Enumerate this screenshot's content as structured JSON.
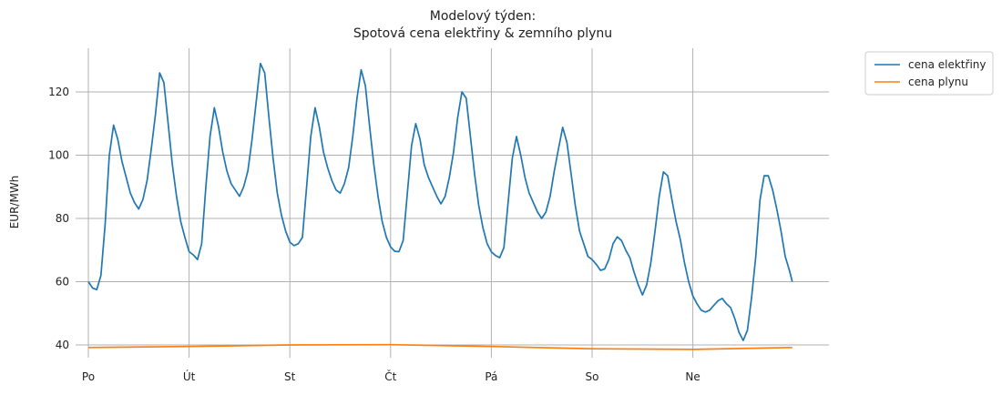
{
  "chart_data": {
    "type": "line",
    "title": [
      "Modelový týden:",
      "Spotová cena elektřiny & zemního plynu"
    ],
    "xlabel": "",
    "ylabel": "EUR/MWh",
    "x_unit": "hour of week",
    "xlim": [
      0,
      168
    ],
    "ylim": [
      35,
      134
    ],
    "yticks": [
      40,
      60,
      80,
      100,
      120
    ],
    "xticks": [
      {
        "x": 0,
        "label": "Po"
      },
      {
        "x": 24,
        "label": "Út"
      },
      {
        "x": 48,
        "label": "St"
      },
      {
        "x": 72,
        "label": "Čt"
      },
      {
        "x": 96,
        "label": "Pá"
      },
      {
        "x": 120,
        "label": "So"
      },
      {
        "x": 144,
        "label": "Ne"
      }
    ],
    "grid": true,
    "legend": "outside-top-right",
    "series": [
      {
        "name": "cena elektřiny",
        "color": "#1f77b4",
        "points": [
          [
            0,
            60
          ],
          [
            1,
            58
          ],
          [
            2,
            57.5
          ],
          [
            3,
            62
          ],
          [
            4,
            78
          ],
          [
            5,
            100
          ],
          [
            6,
            109.5
          ],
          [
            7,
            105
          ],
          [
            8,
            98
          ],
          [
            9,
            93
          ],
          [
            10,
            88
          ],
          [
            11,
            85
          ],
          [
            12,
            83
          ],
          [
            13,
            86
          ],
          [
            14,
            92
          ],
          [
            15,
            102
          ],
          [
            16,
            113
          ],
          [
            17,
            126
          ],
          [
            18,
            123
          ],
          [
            19,
            110
          ],
          [
            20,
            97
          ],
          [
            21,
            87
          ],
          [
            22,
            79
          ],
          [
            23,
            74
          ],
          [
            24,
            69.5
          ],
          [
            25,
            68.5
          ],
          [
            26,
            67
          ],
          [
            27,
            72
          ],
          [
            28,
            90
          ],
          [
            29,
            106
          ],
          [
            30,
            115
          ],
          [
            31,
            109
          ],
          [
            32,
            101
          ],
          [
            33,
            95
          ],
          [
            34,
            91
          ],
          [
            35,
            89
          ],
          [
            36,
            87
          ],
          [
            37,
            90
          ],
          [
            38,
            95
          ],
          [
            39,
            105
          ],
          [
            40,
            117
          ],
          [
            41,
            129
          ],
          [
            42,
            126
          ],
          [
            43,
            112
          ],
          [
            44,
            99
          ],
          [
            45,
            88
          ],
          [
            46,
            81
          ],
          [
            47,
            76
          ],
          [
            48,
            72.5
          ],
          [
            49,
            71.4
          ],
          [
            50,
            72
          ],
          [
            51,
            74
          ],
          [
            52,
            90
          ],
          [
            53,
            106
          ],
          [
            54,
            115
          ],
          [
            55,
            109
          ],
          [
            56,
            101
          ],
          [
            57,
            96
          ],
          [
            58,
            92
          ],
          [
            59,
            89
          ],
          [
            60,
            88
          ],
          [
            61,
            91
          ],
          [
            62,
            96
          ],
          [
            63,
            106
          ],
          [
            64,
            118
          ],
          [
            65,
            127
          ],
          [
            66,
            122
          ],
          [
            67,
            109
          ],
          [
            68,
            97
          ],
          [
            69,
            87
          ],
          [
            70,
            79
          ],
          [
            71,
            74
          ],
          [
            72,
            71
          ],
          [
            73,
            69.6
          ],
          [
            74,
            69.5
          ],
          [
            75,
            73
          ],
          [
            76,
            88
          ],
          [
            77,
            103
          ],
          [
            78,
            110
          ],
          [
            79,
            105
          ],
          [
            80,
            97
          ],
          [
            81,
            93
          ],
          [
            82,
            90
          ],
          [
            83,
            87
          ],
          [
            84,
            84.6
          ],
          [
            85,
            87
          ],
          [
            86,
            93
          ],
          [
            87,
            101
          ],
          [
            88,
            112
          ],
          [
            89,
            120
          ],
          [
            90,
            118
          ],
          [
            91,
            106
          ],
          [
            92,
            94
          ],
          [
            93,
            84
          ],
          [
            94,
            77
          ],
          [
            95,
            72
          ],
          [
            96,
            69.4
          ],
          [
            97,
            68.3
          ],
          [
            98,
            67.6
          ],
          [
            99,
            70.8
          ],
          [
            100,
            85
          ],
          [
            101,
            99
          ],
          [
            102,
            105.9
          ],
          [
            103,
            100
          ],
          [
            104,
            93
          ],
          [
            105,
            88
          ],
          [
            106,
            85
          ],
          [
            107,
            82
          ],
          [
            108,
            80
          ],
          [
            109,
            82
          ],
          [
            110,
            87
          ],
          [
            111,
            95
          ],
          [
            112,
            102
          ],
          [
            113,
            108.8
          ],
          [
            114,
            104
          ],
          [
            115,
            94
          ],
          [
            116,
            84
          ],
          [
            117,
            76
          ],
          [
            118,
            72
          ],
          [
            119,
            68
          ],
          [
            120,
            67
          ],
          [
            121,
            65.5
          ],
          [
            122,
            63.6
          ],
          [
            123,
            64
          ],
          [
            124,
            67
          ],
          [
            125,
            72
          ],
          [
            126,
            74.2
          ],
          [
            127,
            73
          ],
          [
            128,
            70
          ],
          [
            129,
            67.6
          ],
          [
            130,
            63
          ],
          [
            131,
            59
          ],
          [
            132,
            55.8
          ],
          [
            133,
            59
          ],
          [
            134,
            66
          ],
          [
            135,
            76
          ],
          [
            136,
            87
          ],
          [
            137,
            94.7
          ],
          [
            138,
            93.5
          ],
          [
            139,
            86
          ],
          [
            140,
            79
          ],
          [
            141,
            73.4
          ],
          [
            142,
            66
          ],
          [
            143,
            60
          ],
          [
            144,
            55.5
          ],
          [
            145,
            53
          ],
          [
            146,
            51
          ],
          [
            147,
            50.4
          ],
          [
            148,
            51
          ],
          [
            149,
            52.5
          ],
          [
            150,
            54
          ],
          [
            151,
            54.7
          ],
          [
            152,
            53
          ],
          [
            153,
            51.8
          ],
          [
            154,
            48.3
          ],
          [
            155,
            44
          ],
          [
            156,
            41.4
          ],
          [
            157,
            44.6
          ],
          [
            158,
            55
          ],
          [
            159,
            68
          ],
          [
            160,
            85.8
          ],
          [
            161,
            93.5
          ],
          [
            162,
            93.5
          ],
          [
            163,
            89
          ],
          [
            164,
            82.9
          ],
          [
            165,
            76
          ],
          [
            166,
            68
          ],
          [
            167,
            63.6
          ],
          [
            167.7,
            60
          ]
        ]
      },
      {
        "name": "cena plynu",
        "color": "#ff7f0e",
        "points": [
          [
            0,
            39.2
          ],
          [
            24,
            39.5
          ],
          [
            48,
            40
          ],
          [
            72,
            40.1
          ],
          [
            96,
            39.5
          ],
          [
            120,
            38.8
          ],
          [
            144,
            38.6
          ],
          [
            167.7,
            39.2
          ]
        ]
      }
    ]
  }
}
